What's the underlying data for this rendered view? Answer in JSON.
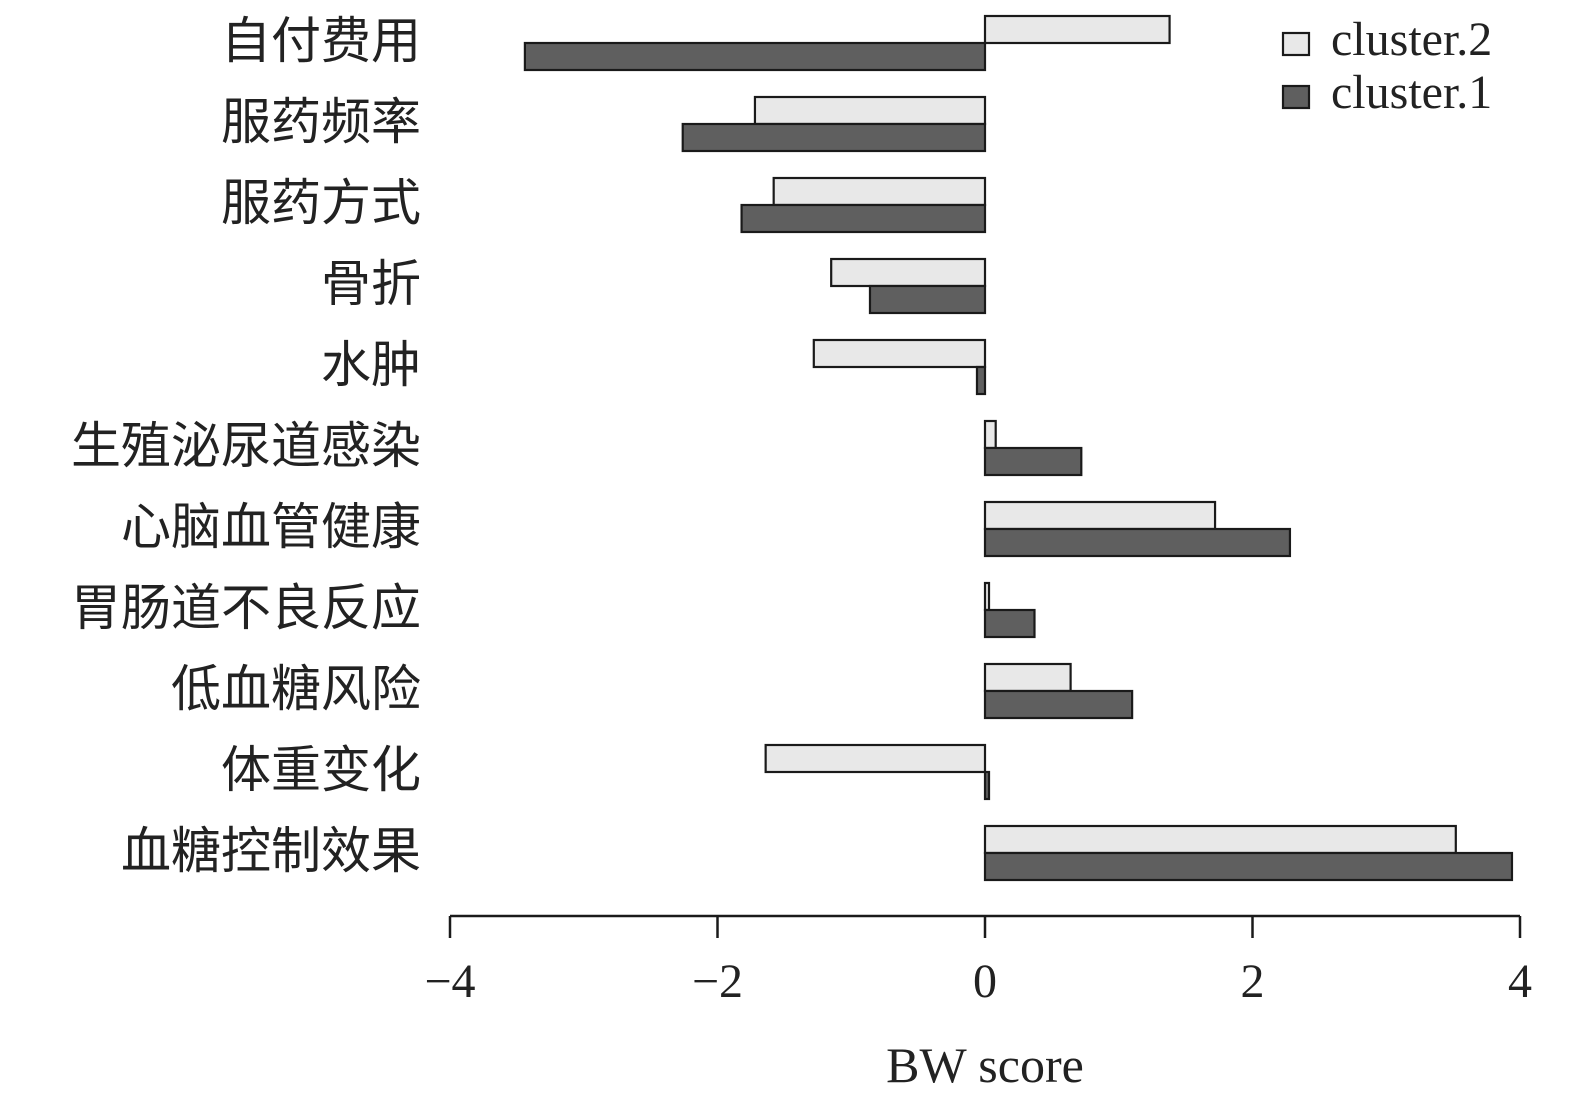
{
  "chart_data": {
    "type": "bar",
    "orientation": "horizontal",
    "categories": [
      "自付费用",
      "服药频率",
      "服药方式",
      "骨折",
      "水肿",
      "生殖泌尿道感染",
      "心脑血管健康",
      "胃肠道不良反应",
      "低血糖风险",
      "体重变化",
      "血糖控制效果"
    ],
    "series": [
      {
        "name": "cluster.2",
        "color": "#e8e8e8",
        "values": [
          1.38,
          -1.72,
          -1.58,
          -1.15,
          -1.28,
          0.08,
          1.72,
          0.03,
          0.64,
          -1.64,
          3.52
        ]
      },
      {
        "name": "cluster.1",
        "color": "#5f5f5f",
        "values": [
          -3.44,
          -2.26,
          -1.82,
          -0.86,
          -0.06,
          0.72,
          2.28,
          0.37,
          1.1,
          0.03,
          3.94
        ]
      }
    ],
    "xlabel": "BW score",
    "ylabel": "",
    "xlim": [
      -4,
      4
    ],
    "xticks": [
      -4,
      -2,
      0,
      2,
      4
    ],
    "xtick_labels": [
      "−4",
      "−2",
      "0",
      "2",
      "4"
    ],
    "legend": {
      "position": "top-right",
      "order": [
        "cluster.2",
        "cluster.1"
      ]
    },
    "grid": false,
    "edge_color": "#1a1a1a"
  }
}
